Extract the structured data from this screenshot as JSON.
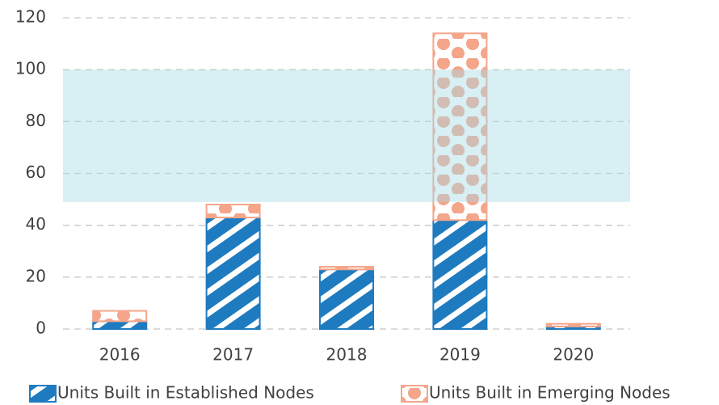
{
  "chart_data": {
    "type": "stacked_bar",
    "categories": [
      "2016",
      "2017",
      "2018",
      "2019",
      "2020"
    ],
    "series": [
      {
        "name": "Units Built in Established Nodes",
        "color": "#1f7bbf",
        "values": [
          3,
          43,
          23,
          42,
          1
        ]
      },
      {
        "name": "Units Built in Emerging Nodes",
        "color": "#f4a58a",
        "values": [
          4,
          5,
          1,
          72,
          1
        ]
      }
    ],
    "ylim": [
      0,
      120
    ],
    "yticks": [
      0,
      20,
      40,
      60,
      80,
      100,
      120
    ],
    "grid": true,
    "band": [
      49,
      100
    ],
    "band_color": "#a9dbe6",
    "legend": "bottom"
  }
}
